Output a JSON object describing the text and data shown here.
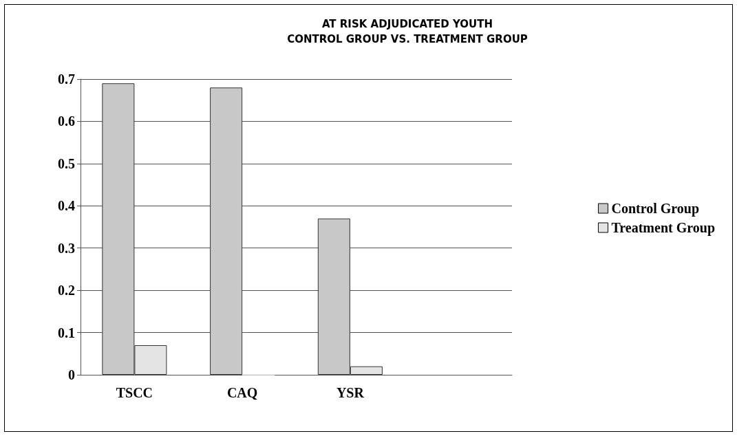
{
  "chart_data": {
    "type": "bar",
    "title": "AT RISK ADJUDICATED YOUTH\nCONTROL GROUP VS. TREATMENT GROUP",
    "categories": [
      "TSCC",
      "CAQ",
      "YSR",
      null
    ],
    "series": [
      {
        "name": "Control Group",
        "color": "#c8c8c8",
        "values": [
          0.69,
          0.68,
          0.37,
          null
        ]
      },
      {
        "name": "Treatment Group",
        "color": "#e4e4e4",
        "values": [
          0.07,
          0,
          0.02,
          null
        ]
      }
    ],
    "ylim": [
      0,
      0.7
    ],
    "yticks": [
      0,
      0.1,
      0.2,
      0.3,
      0.4,
      0.5,
      0.6,
      0.7
    ],
    "grid": "y",
    "legend": "right"
  }
}
